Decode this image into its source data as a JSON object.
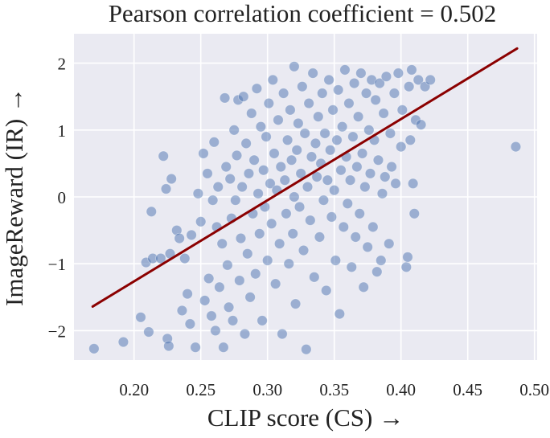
{
  "chart_data": {
    "type": "scatter",
    "title": "Pearson correlation coefficient = 0.502",
    "xlabel": "CLIP score (CS) →",
    "ylabel": "ImageReward (IR) →",
    "xlim": [
      0.155,
      0.502
    ],
    "ylim": [
      -2.44,
      2.44
    ],
    "xticks": [
      0.2,
      0.25,
      0.3,
      0.35,
      0.4,
      0.45,
      0.5
    ],
    "xtick_labels": [
      "0.20",
      "0.25",
      "0.30",
      "0.35",
      "0.40",
      "0.45",
      "0.50"
    ],
    "yticks": [
      2,
      1,
      0,
      -1,
      -2
    ],
    "ytick_labels": [
      "2",
      "1",
      "0",
      "−1",
      "−2"
    ],
    "grid": true,
    "colors": {
      "background": "#eaeaf2",
      "points": "#4c72b0",
      "fit_line": "#8b0000",
      "grid": "#ffffff"
    },
    "fit_line": {
      "x": [
        0.169,
        0.487
      ],
      "y": [
        -1.64,
        2.22
      ]
    },
    "points": [
      [
        0.17,
        -2.27
      ],
      [
        0.192,
        -2.17
      ],
      [
        0.205,
        -1.8
      ],
      [
        0.213,
        -0.22
      ],
      [
        0.211,
        -2.02
      ],
      [
        0.209,
        -0.98
      ],
      [
        0.214,
        -0.92
      ],
      [
        0.22,
        -0.92
      ],
      [
        0.222,
        0.61
      ],
      [
        0.224,
        0.12
      ],
      [
        0.227,
        -0.85
      ],
      [
        0.228,
        0.27
      ],
      [
        0.225,
        -2.12
      ],
      [
        0.226,
        -2.23
      ],
      [
        0.232,
        -0.5
      ],
      [
        0.234,
        -0.62
      ],
      [
        0.236,
        -1.7
      ],
      [
        0.238,
        -0.92
      ],
      [
        0.24,
        -1.45
      ],
      [
        0.242,
        -1.9
      ],
      [
        0.243,
        -0.57
      ],
      [
        0.246,
        -2.25
      ],
      [
        0.248,
        0.05
      ],
      [
        0.25,
        -0.37
      ],
      [
        0.252,
        0.65
      ],
      [
        0.253,
        -1.55
      ],
      [
        0.255,
        0.35
      ],
      [
        0.256,
        -1.22
      ],
      [
        0.258,
        -1.78
      ],
      [
        0.259,
        -0.05
      ],
      [
        0.26,
        0.82
      ],
      [
        0.261,
        -2.0
      ],
      [
        0.262,
        -0.45
      ],
      [
        0.263,
        0.15
      ],
      [
        0.264,
        -1.35
      ],
      [
        0.266,
        -0.7
      ],
      [
        0.267,
        -2.25
      ],
      [
        0.268,
        1.48
      ],
      [
        0.269,
        0.45
      ],
      [
        0.27,
        -1.02
      ],
      [
        0.271,
        -1.65
      ],
      [
        0.272,
        0.27
      ],
      [
        0.273,
        -0.32
      ],
      [
        0.274,
        -1.85
      ],
      [
        0.275,
        1.0
      ],
      [
        0.276,
        -0.05
      ],
      [
        0.277,
        0.62
      ],
      [
        0.278,
        1.45
      ],
      [
        0.279,
        -1.25
      ],
      [
        0.28,
        -0.62
      ],
      [
        0.281,
        0.15
      ],
      [
        0.282,
        1.5
      ],
      [
        0.283,
        -2.05
      ],
      [
        0.284,
        0.8
      ],
      [
        0.285,
        -0.85
      ],
      [
        0.286,
        0.35
      ],
      [
        0.287,
        -1.5
      ],
      [
        0.288,
        1.25
      ],
      [
        0.289,
        -0.25
      ],
      [
        0.29,
        0.55
      ],
      [
        0.291,
        -1.15
      ],
      [
        0.292,
        1.62
      ],
      [
        0.293,
        0.05
      ],
      [
        0.294,
        -0.55
      ],
      [
        0.295,
        1.05
      ],
      [
        0.296,
        -1.85
      ],
      [
        0.297,
        0.4
      ],
      [
        0.298,
        -0.15
      ],
      [
        0.299,
        0.9
      ],
      [
        0.3,
        -0.95
      ],
      [
        0.301,
        1.4
      ],
      [
        0.302,
        0.2
      ],
      [
        0.303,
        -0.4
      ],
      [
        0.304,
        1.75
      ],
      [
        0.305,
        0.65
      ],
      [
        0.306,
        -1.3
      ],
      [
        0.307,
        0.1
      ],
      [
        0.308,
        1.15
      ],
      [
        0.309,
        -0.7
      ],
      [
        0.31,
        0.45
      ],
      [
        0.311,
        -2.05
      ],
      [
        0.312,
        1.55
      ],
      [
        0.313,
        0.25
      ],
      [
        0.314,
        -0.25
      ],
      [
        0.315,
        0.85
      ],
      [
        0.316,
        -1.0
      ],
      [
        0.317,
        1.3
      ],
      [
        0.318,
        0.55
      ],
      [
        0.319,
        -0.55
      ],
      [
        0.32,
        1.95
      ],
      [
        0.32,
        0.0
      ],
      [
        0.321,
        -1.6
      ],
      [
        0.322,
        0.7
      ],
      [
        0.323,
        1.1
      ],
      [
        0.324,
        -0.15
      ],
      [
        0.325,
        0.35
      ],
      [
        0.326,
        1.65
      ],
      [
        0.327,
        -0.8
      ],
      [
        0.328,
        0.95
      ],
      [
        0.329,
        -2.28
      ],
      [
        0.33,
        0.15
      ],
      [
        0.331,
        1.4
      ],
      [
        0.332,
        -0.35
      ],
      [
        0.333,
        0.6
      ],
      [
        0.334,
        1.85
      ],
      [
        0.335,
        -1.2
      ],
      [
        0.336,
        0.8
      ],
      [
        0.337,
        0.3
      ],
      [
        0.338,
        1.2
      ],
      [
        0.339,
        -0.6
      ],
      [
        0.34,
        0.5
      ],
      [
        0.341,
        1.55
      ],
      [
        0.342,
        -0.05
      ],
      [
        0.343,
        0.95
      ],
      [
        0.344,
        -1.4
      ],
      [
        0.345,
        0.25
      ],
      [
        0.346,
        1.75
      ],
      [
        0.347,
        0.7
      ],
      [
        0.348,
        -0.3
      ],
      [
        0.349,
        1.3
      ],
      [
        0.35,
        0.1
      ],
      [
        0.351,
        -0.95
      ],
      [
        0.352,
        0.85
      ],
      [
        0.353,
        1.6
      ],
      [
        0.354,
        -1.75
      ],
      [
        0.355,
        0.4
      ],
      [
        0.356,
        1.05
      ],
      [
        0.357,
        -0.45
      ],
      [
        0.358,
        1.9
      ],
      [
        0.359,
        0.6
      ],
      [
        0.36,
        -0.1
      ],
      [
        0.361,
        1.4
      ],
      [
        0.362,
        0.25
      ],
      [
        0.363,
        -1.05
      ],
      [
        0.364,
        0.9
      ],
      [
        0.365,
        1.7
      ],
      [
        0.366,
        -0.6
      ],
      [
        0.367,
        0.45
      ],
      [
        0.368,
        1.2
      ],
      [
        0.369,
        -0.25
      ],
      [
        0.37,
        1.85
      ],
      [
        0.371,
        0.65
      ],
      [
        0.372,
        -1.35
      ],
      [
        0.373,
        0.15
      ],
      [
        0.374,
        1.55
      ],
      [
        0.375,
        -0.75
      ],
      [
        0.376,
        1.0
      ],
      [
        0.377,
        0.35
      ],
      [
        0.378,
        1.75
      ],
      [
        0.379,
        -0.45
      ],
      [
        0.38,
        0.85
      ],
      [
        0.381,
        1.45
      ],
      [
        0.382,
        -1.12
      ],
      [
        0.383,
        0.55
      ],
      [
        0.384,
        1.7
      ],
      [
        0.385,
        -0.95
      ],
      [
        0.386,
        0.05
      ],
      [
        0.387,
        1.25
      ],
      [
        0.388,
        0.3
      ],
      [
        0.389,
        1.8
      ],
      [
        0.391,
        -0.7
      ],
      [
        0.392,
        0.95
      ],
      [
        0.393,
        0.45
      ],
      [
        0.395,
        1.55
      ],
      [
        0.396,
        0.2
      ],
      [
        0.398,
        1.85
      ],
      [
        0.4,
        0.75
      ],
      [
        0.401,
        1.3
      ],
      [
        0.404,
        -1.05
      ],
      [
        0.405,
        -0.9
      ],
      [
        0.406,
        1.65
      ],
      [
        0.407,
        0.85
      ],
      [
        0.408,
        1.9
      ],
      [
        0.409,
        0.2
      ],
      [
        0.41,
        -0.25
      ],
      [
        0.411,
        1.15
      ],
      [
        0.413,
        1.75
      ],
      [
        0.415,
        1.08
      ],
      [
        0.418,
        1.65
      ],
      [
        0.422,
        1.75
      ],
      [
        0.486,
        0.75
      ]
    ]
  }
}
